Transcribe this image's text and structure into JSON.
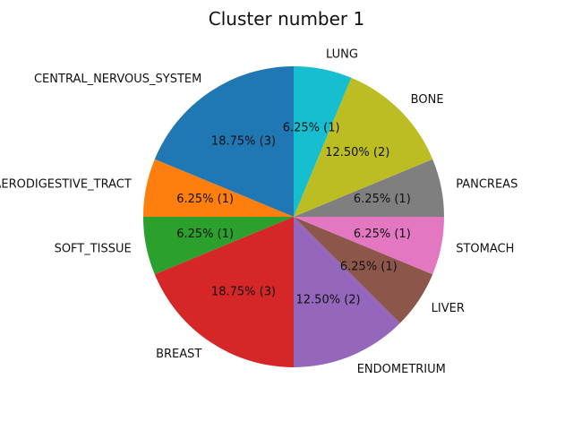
{
  "chart_data": {
    "type": "pie",
    "title": "Cluster number 1",
    "slices": [
      {
        "label": "CENTRAL_NERVOUS_SYSTEM",
        "value": 3,
        "percent_label": "18.75%  (3)",
        "color": "#1f77b4"
      },
      {
        "label": "UPPER_AERODIGESTIVE_TRACT",
        "value": 1,
        "percent_label": "6.25%  (1)",
        "color": "#ff7f0e"
      },
      {
        "label": "SOFT_TISSUE",
        "value": 1,
        "percent_label": "6.25%  (1)",
        "color": "#2ca02c"
      },
      {
        "label": "BREAST",
        "value": 3,
        "percent_label": "18.75%  (3)",
        "color": "#d62728"
      },
      {
        "label": "ENDOMETRIUM",
        "value": 2,
        "percent_label": "12.50%  (2)",
        "color": "#9467bd"
      },
      {
        "label": "LIVER",
        "value": 1,
        "percent_label": "6.25%  (1)",
        "color": "#8c564b"
      },
      {
        "label": "STOMACH",
        "value": 1,
        "percent_label": "6.25%  (1)",
        "color": "#e377c2"
      },
      {
        "label": "PANCREAS",
        "value": 1,
        "percent_label": "6.25%  (1)",
        "color": "#7f7f7f"
      },
      {
        "label": "BONE",
        "value": 2,
        "percent_label": "12.50%  (2)",
        "color": "#bcbd22"
      },
      {
        "label": "LUNG",
        "value": 1,
        "percent_label": "6.25%  (1)",
        "color": "#17becf"
      }
    ],
    "start_angle_deg": 90,
    "direction": "counterclockwise"
  }
}
